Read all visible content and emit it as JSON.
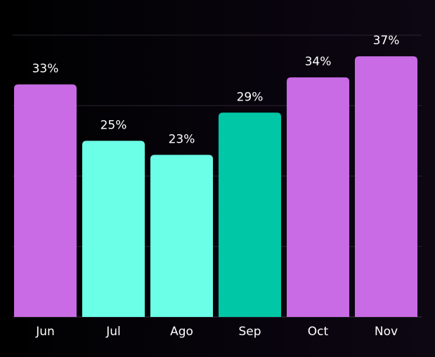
{
  "chart_data": {
    "type": "bar",
    "title": "",
    "xlabel": "",
    "ylabel": "",
    "categories": [
      "Jun",
      "Jul",
      "Ago",
      "Sep",
      "Oct",
      "Nov"
    ],
    "values": [
      33,
      25,
      23,
      29,
      34,
      37
    ],
    "value_labels": [
      "33%",
      "25%",
      "23%",
      "29%",
      "34%",
      "37%"
    ],
    "unit": "%",
    "ylim": [
      0,
      40
    ],
    "grid": true,
    "legend": "none",
    "bar_colors": [
      "#c86be4",
      "#6bffe8",
      "#6bffe8",
      "#00c7a6",
      "#c86be4",
      "#c86be4"
    ]
  },
  "colors": {
    "background": "#050308",
    "gridline": "#2a2530",
    "baseline": "#3a3540",
    "label_text": "#ffffff"
  }
}
